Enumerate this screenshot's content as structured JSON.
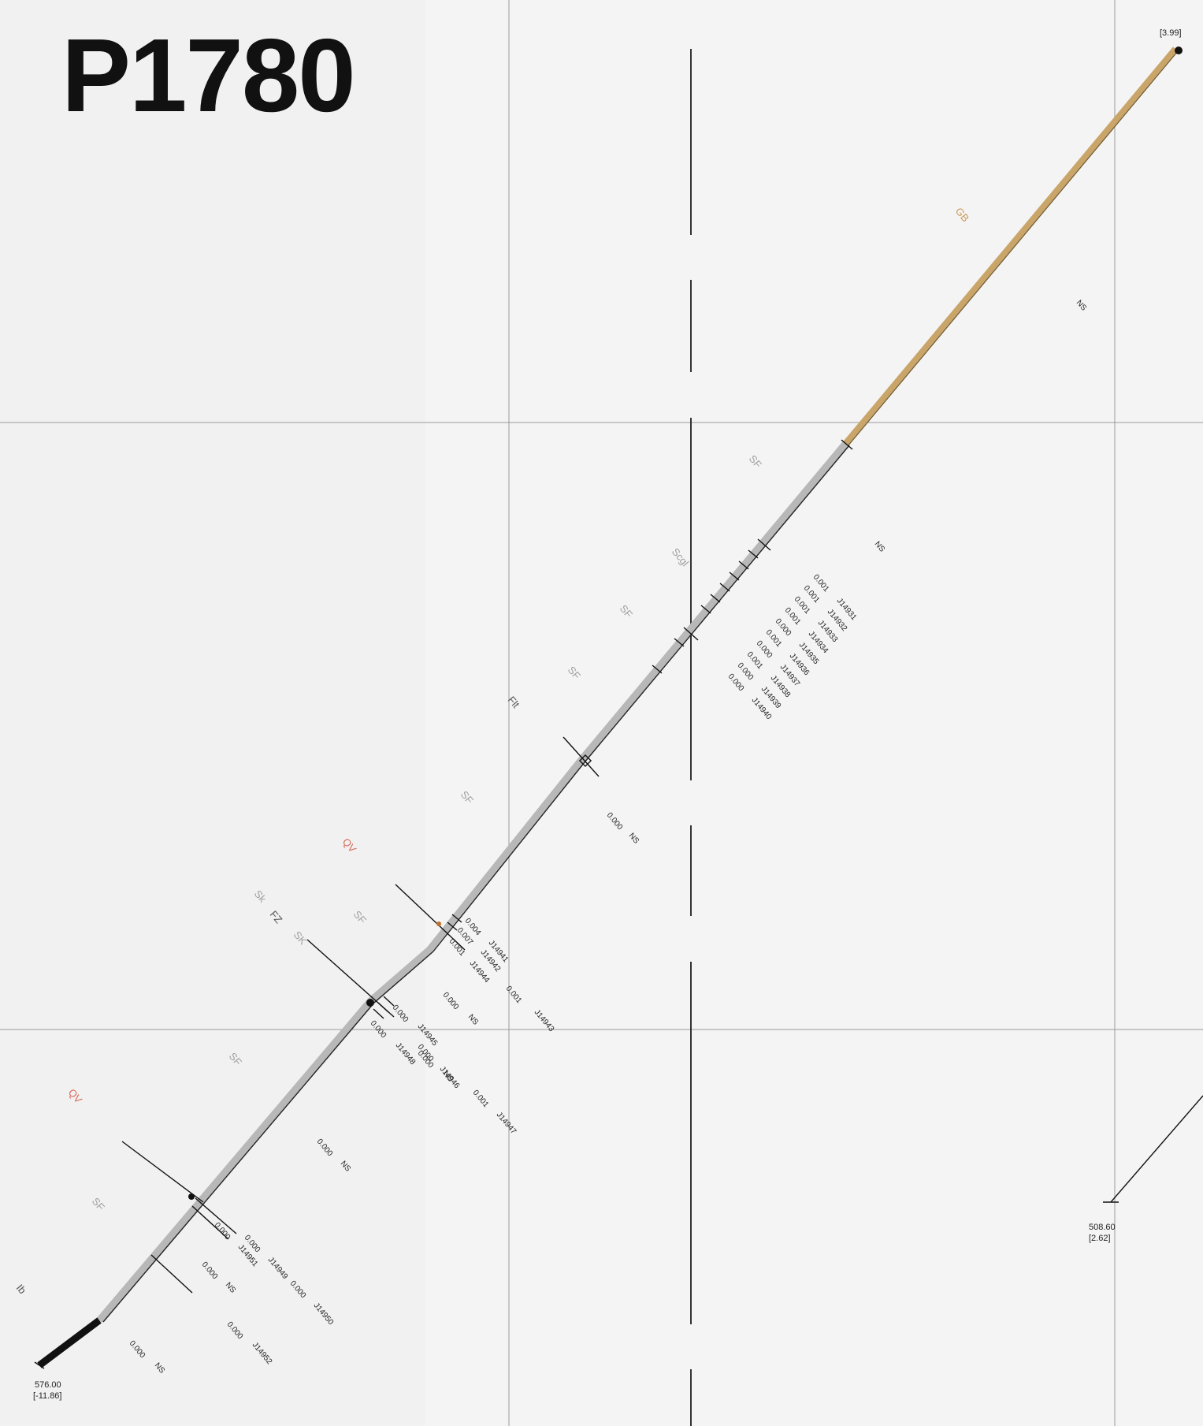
{
  "title": "P1780",
  "colors": {
    "grid": "#9a9a9a",
    "trace_gray": "#b8b8b8",
    "trace_tan": "#caa56a",
    "trace_black": "#111111",
    "label_gray": "#a0a0a0",
    "label_red": "#d96a5a",
    "label_tan": "#c99a55",
    "label_dark": "#222222"
  },
  "collar": {
    "depth": "576.00",
    "elev": "[-11.86]"
  },
  "end_of_hole": {
    "elev": "[3.99]"
  },
  "offset_hole": {
    "depth": "508.60",
    "elev": "[2.62]"
  },
  "geology_labels": [
    "GB",
    "SF",
    "Scgl",
    "SF",
    "SF",
    "Flt",
    "SF",
    "QV",
    "SF",
    "Sk",
    "FZ",
    "SK",
    "SF",
    "QV",
    "SF",
    "Ib"
  ],
  "sample_intervals": [
    {
      "id": "J14931",
      "value": "0.001"
    },
    {
      "id": "J14932",
      "value": "0.001"
    },
    {
      "id": "J14933",
      "value": "0.001"
    },
    {
      "id": "J14934",
      "value": "0.001"
    },
    {
      "id": "J14935",
      "value": "0.000"
    },
    {
      "id": "J14936",
      "value": "0.001"
    },
    {
      "id": "J14937",
      "value": "0.000"
    },
    {
      "id": "J14938",
      "value": "0.001"
    },
    {
      "id": "J14939",
      "value": "0.000"
    },
    {
      "id": "J14940",
      "value": "0.000"
    },
    {
      "id": "J14941",
      "value": "0.004"
    },
    {
      "id": "J14942",
      "value": "0.007"
    },
    {
      "id": "J14943",
      "value": "0.001"
    },
    {
      "id": "J14944",
      "value": "0.001"
    },
    {
      "id": "J14945",
      "value": "0.000"
    },
    {
      "id": "J14946",
      "value": "0.000"
    },
    {
      "id": "J14947",
      "value": "0.001"
    },
    {
      "id": "J14948",
      "value": "0.000"
    },
    {
      "id": "J14949",
      "value": "0.000"
    },
    {
      "id": "J14950",
      "value": "0.000"
    },
    {
      "id": "J14951",
      "value": "0.000"
    },
    {
      "id": "J14952",
      "value": "0.000"
    }
  ],
  "ns_values": [
    {
      "value": "",
      "label": "NS"
    },
    {
      "value": "",
      "label": "NS"
    },
    {
      "value": "0.000",
      "label": "NS"
    },
    {
      "value": "0.000",
      "label": "NS"
    },
    {
      "value": "0.000",
      "label": "NS"
    },
    {
      "value": "0.000",
      "label": "NS"
    },
    {
      "value": "0.000",
      "label": "NS"
    },
    {
      "value": "0.000",
      "label": "NS"
    }
  ]
}
